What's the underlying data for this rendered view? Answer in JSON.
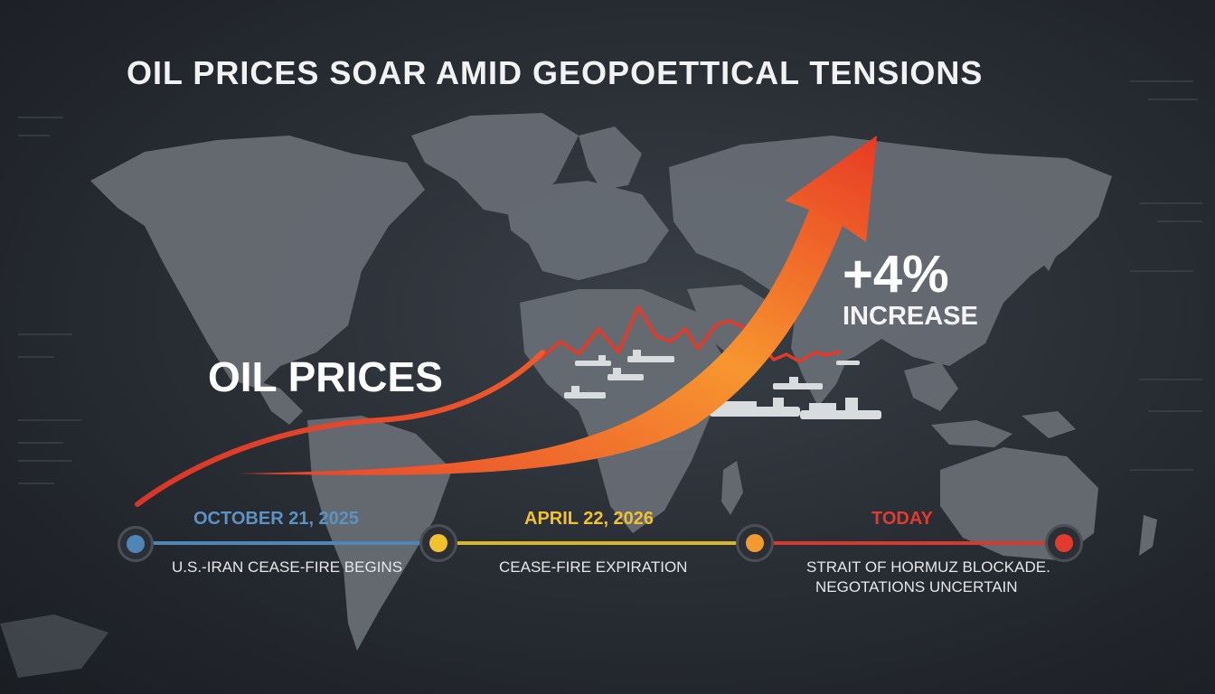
{
  "headline": "OIL PRICES SOAR AMID GEOPOETTICAL TENSIONS",
  "trend_label": "OIL PRICES",
  "stat": {
    "value": "+4%",
    "label": "INCREASE"
  },
  "timeline": {
    "events": [
      {
        "date": "OCTOBER 21, 2025",
        "description": "U.S.-IRAN CEASE-FIRE BEGINS",
        "color": "#4e86b8"
      },
      {
        "date": "APRIL 22, 2026",
        "description": "CEASE-FIRE EXPIRATION",
        "color": "#f2c12e"
      },
      {
        "date": "",
        "description": "",
        "color": "#f29a2e"
      },
      {
        "date": "TODAY",
        "description": "STRAIT OF HORMUZ BLOCKADE.",
        "description_2": "NEGOTATIONS UNCERTAIN",
        "color": "#e23b2e"
      }
    ]
  },
  "colors": {
    "arrow_start": "#e8402a",
    "arrow_end": "#f7a23a",
    "map_land": "#6b7077",
    "background": "#23272d"
  },
  "icons": [
    "world-map",
    "up-trend-arrow",
    "oil-tanker-icon",
    "price-zigzag-line"
  ]
}
